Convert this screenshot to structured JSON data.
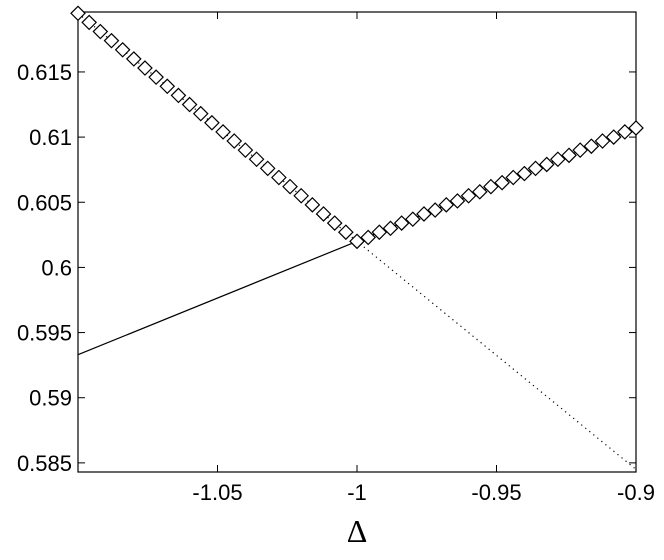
{
  "chart_data": {
    "type": "line",
    "xlabel": "Δ",
    "xlim": [
      -1.1,
      -0.9
    ],
    "ylim": [
      0.5843,
      0.6196
    ],
    "xticks": [
      -1.05,
      -1,
      -0.95,
      -0.9
    ],
    "yticks": [
      0.585,
      0.59,
      0.595,
      0.6,
      0.605,
      0.61,
      0.615
    ],
    "grid": false,
    "series": [
      {
        "color": "#000000",
        "line_style": "solid",
        "x": [
          -1.1,
          -0.9
        ],
        "values": [
          0.5933,
          0.6107
        ]
      },
      {
        "color": "#000000",
        "line_style": "dotted",
        "x": [
          -1.1,
          -0.9
        ],
        "values": [
          0.6195,
          0.5845
        ]
      },
      {
        "color": "#000000",
        "marker": "diamond",
        "x": [
          -1.1,
          -1.096,
          -1.092,
          -1.088,
          -1.084,
          -1.08,
          -1.076,
          -1.072,
          -1.068,
          -1.064,
          -1.06,
          -1.056,
          -1.052,
          -1.048,
          -1.044,
          -1.04,
          -1.036,
          -1.032,
          -1.028,
          -1.024,
          -1.02,
          -1.016,
          -1.012,
          -1.008,
          -1.004,
          -1,
          -0.996,
          -0.992,
          -0.988,
          -0.984,
          -0.98,
          -0.976,
          -0.972,
          -0.968,
          -0.964,
          -0.96,
          -0.956,
          -0.952,
          -0.948,
          -0.944,
          -0.94,
          -0.936,
          -0.932,
          -0.928,
          -0.924,
          -0.92,
          -0.916,
          -0.912,
          -0.908,
          -0.904,
          -0.9
        ],
        "values": [
          0.6195,
          0.6188,
          0.6181,
          0.6174,
          0.6167,
          0.616,
          0.6153,
          0.6146,
          0.6139,
          0.6132,
          0.6125,
          0.6118,
          0.6111,
          0.6104,
          0.6097,
          0.609,
          0.6083,
          0.6076,
          0.6069,
          0.6062,
          0.6055,
          0.6048,
          0.6041,
          0.6034,
          0.6027,
          0.602,
          0.6023,
          0.6027,
          0.603,
          0.6034,
          0.6037,
          0.6041,
          0.6044,
          0.6048,
          0.6051,
          0.6055,
          0.6058,
          0.6062,
          0.6065,
          0.6069,
          0.6072,
          0.6076,
          0.6079,
          0.6083,
          0.6086,
          0.609,
          0.6093,
          0.6097,
          0.61,
          0.6104,
          0.6107
        ]
      }
    ]
  }
}
